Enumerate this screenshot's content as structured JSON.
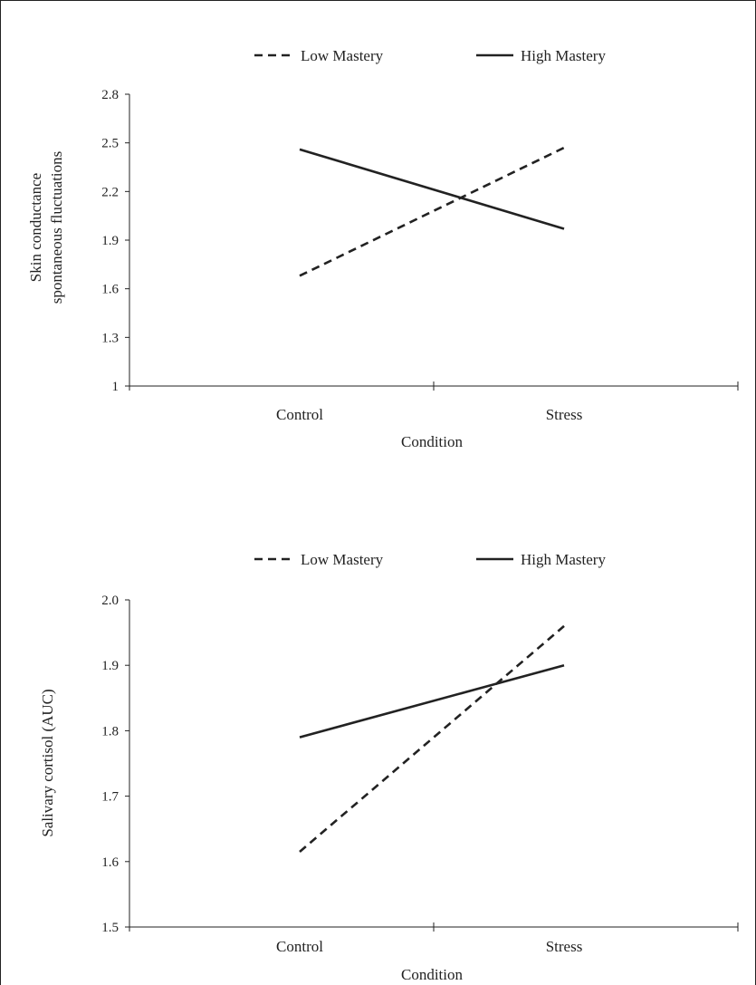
{
  "chart_data": [
    {
      "type": "line",
      "categories": [
        "Control",
        "Stress"
      ],
      "series": [
        {
          "name": "Low Mastery",
          "values": [
            1.68,
            2.47
          ],
          "style": "dashed"
        },
        {
          "name": "High Mastery",
          "values": [
            2.46,
            1.97
          ],
          "style": "solid"
        }
      ],
      "xlabel": "Condition",
      "ylabel_lines": [
        "Skin conductance",
        "spontaneous fluctuations"
      ],
      "yticks": [
        "1",
        "1.3",
        "1.6",
        "1.9",
        "2.2",
        "2.5",
        "2.8"
      ],
      "ylim": [
        1,
        2.8
      ],
      "legend": "top",
      "grid": false,
      "color": "#222222"
    },
    {
      "type": "line",
      "categories": [
        "Control",
        "Stress"
      ],
      "series": [
        {
          "name": "Low Mastery",
          "values": [
            1.615,
            1.96
          ],
          "style": "dashed"
        },
        {
          "name": "High Mastery",
          "values": [
            1.79,
            1.9
          ],
          "style": "solid"
        }
      ],
      "xlabel": "Condition",
      "ylabel_lines": [
        "Salivary cortisol  (AUC)"
      ],
      "yticks": [
        "1.5",
        "1.6",
        "1.7",
        "1.8",
        "1.9",
        "2.0"
      ],
      "ylim": [
        1.5,
        2.0
      ],
      "legend": "top",
      "grid": false,
      "color": "#222222"
    }
  ]
}
